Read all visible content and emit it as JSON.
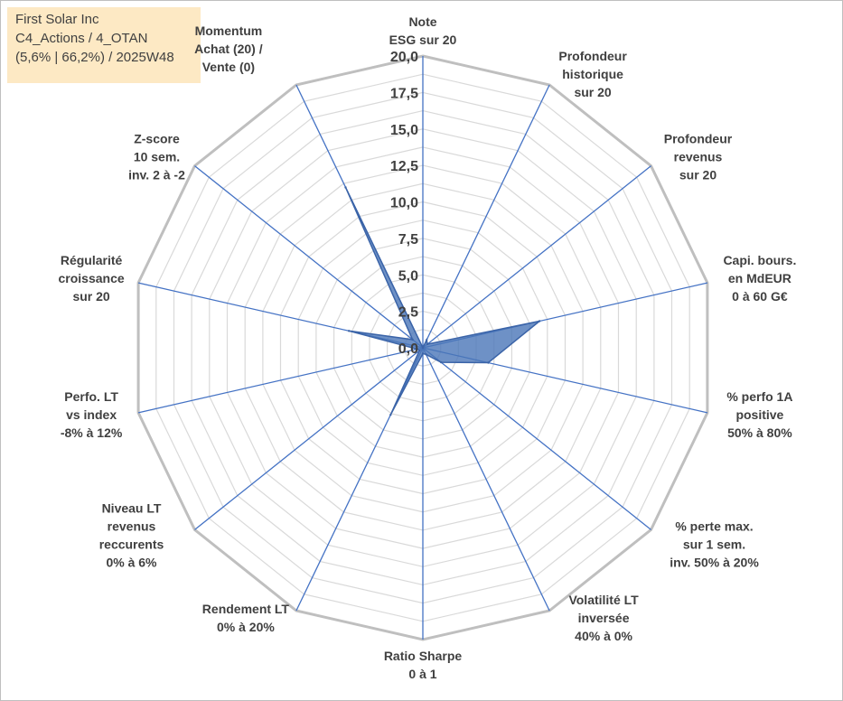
{
  "header": {
    "lines": [
      "First Solar Inc",
      "C4_Actions / 4_OTAN",
      "(5,6% | 66,2%) / 2025W48"
    ]
  },
  "chart_data": {
    "type": "radar",
    "rmin": 0,
    "rmax": 20,
    "ticks": [
      "0,0",
      "2,5",
      "5,0",
      "7,5",
      "10,0",
      "12,5",
      "15,0",
      "17,5",
      "20,0"
    ],
    "tick_values": [
      0,
      2.5,
      5,
      7.5,
      10,
      12.5,
      15,
      17.5,
      20
    ],
    "axes": [
      {
        "label": [
          "Note",
          "ESG sur 20"
        ],
        "value": 0
      },
      {
        "label": [
          "Profondeur",
          "historique",
          "sur 20"
        ],
        "value": 0.6
      },
      {
        "label": [
          "Profondeur",
          "revenus",
          "sur 20"
        ],
        "value": 0.4
      },
      {
        "label": [
          "Capi. bours.",
          "en MdEUR",
          "0 à 60 G€"
        ],
        "value": 8.2
      },
      {
        "label": [
          "% perfo 1A",
          "positive",
          "50% à 80%"
        ],
        "value": 4.6
      },
      {
        "label": [
          "% perte max.",
          "sur 1 sem.",
          "inv. 50% à 20%"
        ],
        "value": 1.6
      },
      {
        "label": [
          "Volatilité LT",
          "inversée",
          "40% à 0%"
        ],
        "value": 0.5
      },
      {
        "label": [
          "Ratio Sharpe",
          "0 à 1"
        ],
        "value": 0.4
      },
      {
        "label": [
          "Rendement LT",
          "0% à 20%"
        ],
        "value": 5.1
      },
      {
        "label": [
          "Niveau LT",
          "revenus",
          "reccurents",
          "0% à 6%"
        ],
        "value": 0.3
      },
      {
        "label": [
          "Perfo. LT",
          "vs index",
          "-8% à 12%"
        ],
        "value": 0.4
      },
      {
        "label": [
          "Régularité",
          "croissance",
          "sur 20"
        ],
        "value": 5.2
      },
      {
        "label": [
          "Z-score",
          "10 sem.",
          "inv. 2 à -2"
        ],
        "value": 0.9
      },
      {
        "label": [
          "Momentum",
          "Achat (20) /",
          "Vente (0)"
        ],
        "value": 12.2
      }
    ],
    "series": [
      {
        "values": [
          0,
          0.6,
          0.4,
          8.2,
          4.6,
          1.6,
          0.5,
          0.4,
          5.1,
          0.3,
          0.4,
          5.2,
          0.9,
          12.2
        ]
      }
    ],
    "colors": {
      "fill": "#4a76b8",
      "stroke": "#3b64a8",
      "spoke": "#4472c4",
      "grid": "#bfbfbf",
      "ring": "#d9d9d9"
    }
  }
}
